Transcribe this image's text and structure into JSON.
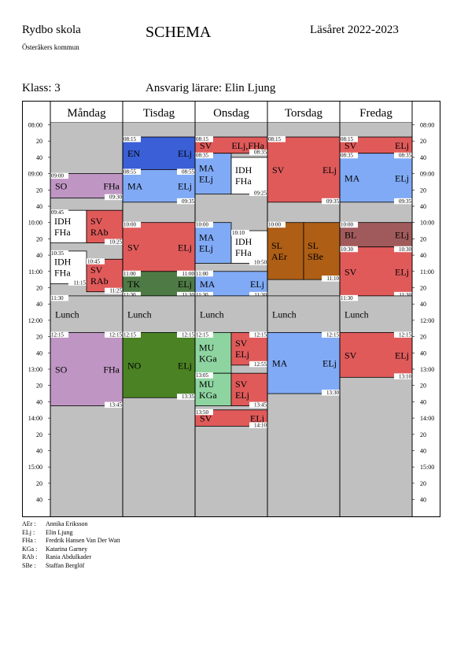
{
  "header": {
    "school": "Rydbo skola",
    "title": "SCHEMA",
    "year": "Läsåret 2022-2023",
    "kommun": "Österåkers kommun",
    "klass": "Klass: 3",
    "teacher": "Ansvarig lärare: Elin Ljung"
  },
  "colors": {
    "background": "#c0c0c0",
    "purple": "#bf96c3",
    "red": "#e05a5a",
    "blue_dark": "#3a5fd6",
    "blue_light": "#80aaf5",
    "green_dark": "#4e7a45",
    "green_mid": "#4a8224",
    "green_light": "#8ed4a0",
    "brown": "#ae5e15",
    "brown_red": "#a15a5b",
    "white": "#ffffff"
  },
  "time_labels": [
    "08:00",
    "20",
    "40",
    "09:00",
    "20",
    "40",
    "10:00",
    "20",
    "40",
    "11:00",
    "20",
    "40",
    "12:00",
    "20",
    "40",
    "13:00",
    "20",
    "40",
    "14:00",
    "20",
    "40",
    "15:00",
    "20",
    "40"
  ],
  "days": [
    {
      "name": "Måndag",
      "blocks": [
        {
          "start": "09:00",
          "end": "09:30",
          "lines": [
            "SO"
          ],
          "right": "FHa",
          "color": "purple",
          "tl": "09:00",
          "br": "09:30"
        },
        {
          "start": "09:45",
          "end": "10:25",
          "lines": [
            "IDH",
            "FHa"
          ],
          "right": "",
          "color": "white",
          "tl": "09:45",
          "br": "",
          "half": "left"
        },
        {
          "start": "09:45",
          "end": "10:25",
          "lines": [
            "SV",
            "RAb"
          ],
          "right": "",
          "color": "red",
          "tl": "",
          "br": "10:25",
          "half": "right"
        },
        {
          "start": "10:35",
          "end": "11:15",
          "lines": [
            "IDH",
            "FHa"
          ],
          "right": "",
          "color": "white",
          "tl": "10:35",
          "br": "11:15",
          "half": "left"
        },
        {
          "start": "10:45",
          "end": "11:25",
          "lines": [
            "SV",
            "RAb"
          ],
          "right": "",
          "color": "red",
          "tl": "10:45",
          "br": "11:25",
          "half": "right"
        },
        {
          "start": "11:30",
          "end": "12:15",
          "lines": [
            "Lunch"
          ],
          "right": "",
          "color": "lunch",
          "tl": "11:30",
          "br": ""
        },
        {
          "start": "12:15",
          "end": "13:45",
          "lines": [
            "SO"
          ],
          "right": "FHa",
          "color": "purple",
          "tl": "12:15",
          "tr": "12:15",
          "br": "13:45"
        }
      ]
    },
    {
      "name": "Tisdag",
      "blocks": [
        {
          "start": "08:15",
          "end": "08:55",
          "lines": [
            "EN"
          ],
          "right": "ELj",
          "color": "blue_dark",
          "tl": "08:15",
          "br": ""
        },
        {
          "start": "08:55",
          "end": "09:35",
          "lines": [
            "MA"
          ],
          "right": "ELj",
          "color": "blue_light",
          "tl": "08:55",
          "tr": "08:55",
          "br": "09:35"
        },
        {
          "start": "10:00",
          "end": "11:00",
          "lines": [
            "SV"
          ],
          "right": "ELj",
          "color": "red",
          "tl": "10:00",
          "br": ""
        },
        {
          "start": "11:00",
          "end": "11:30",
          "lines": [
            "TK"
          ],
          "right": "ELj",
          "color": "green_dark",
          "tl": "11:00",
          "tr": "11:00",
          "bl": "11:30",
          "br": "11:30"
        },
        {
          "start": "11:30",
          "end": "12:15",
          "lines": [
            "Lunch"
          ],
          "right": "",
          "color": "lunch",
          "tl": "",
          "br": ""
        },
        {
          "start": "12:15",
          "end": "13:35",
          "lines": [
            "NO"
          ],
          "right": "ELj",
          "color": "green_mid",
          "tl": "12:15",
          "tr": "12:15",
          "br": "13:35"
        }
      ]
    },
    {
      "name": "Onsdag",
      "blocks": [
        {
          "start": "08:15",
          "end": "08:35",
          "lines": [
            "SV"
          ],
          "right": "ELj,FHa",
          "color": "red",
          "tl": "08:15",
          "br": "08:35"
        },
        {
          "start": "08:35",
          "end": "09:25",
          "lines": [
            "MA",
            "ELj"
          ],
          "right": "",
          "color": "blue_light",
          "tl": "08:35",
          "half": "left"
        },
        {
          "start": "08:40",
          "end": "09:25",
          "lines": [
            "IDH",
            "FHa"
          ],
          "right": "",
          "color": "white",
          "tl": "",
          "br": "09:25",
          "half": "right"
        },
        {
          "start": "10:00",
          "end": "10:50",
          "lines": [
            "MA",
            "ELj"
          ],
          "right": "",
          "color": "blue_light",
          "tl": "10:00",
          "half": "left"
        },
        {
          "start": "10:10",
          "end": "10:50",
          "lines": [
            "IDH",
            "FHa"
          ],
          "right": "",
          "color": "white",
          "tl": "10:10",
          "br": "10:50",
          "half": "right"
        },
        {
          "start": "11:00",
          "end": "11:30",
          "lines": [
            "MA"
          ],
          "right": "ELj",
          "color": "blue_light",
          "tl": "11:00",
          "bl": "11:30",
          "br": "11:30"
        },
        {
          "start": "11:30",
          "end": "12:15",
          "lines": [
            "Lunch"
          ],
          "right": "",
          "color": "lunch"
        },
        {
          "start": "12:15",
          "end": "13:05",
          "lines": [
            "MU",
            "KGa"
          ],
          "right": "",
          "color": "green_light",
          "tl": "12:15",
          "half": "left"
        },
        {
          "start": "12:15",
          "end": "12:55",
          "lines": [
            "SV",
            "ELj"
          ],
          "right": "",
          "color": "red",
          "tr": "12:15",
          "br": "12:55",
          "half": "right"
        },
        {
          "start": "13:05",
          "end": "13:45",
          "lines": [
            "MU",
            "KGa"
          ],
          "right": "",
          "color": "green_light",
          "tl": "13:05",
          "half": "left"
        },
        {
          "start": "13:05",
          "end": "13:45",
          "lines": [
            "SV",
            "ELj"
          ],
          "right": "",
          "color": "red",
          "br": "13:45",
          "half": "right"
        },
        {
          "start": "13:50",
          "end": "14:10",
          "lines": [
            "SV"
          ],
          "right": "ELj",
          "color": "red",
          "tl": "13:50",
          "br": "14:10"
        }
      ]
    },
    {
      "name": "Torsdag",
      "blocks": [
        {
          "start": "08:15",
          "end": "09:35",
          "lines": [
            "SV"
          ],
          "right": "ELj",
          "color": "red",
          "tl": "08:15",
          "br": "09:35"
        },
        {
          "start": "10:00",
          "end": "11:10",
          "lines": [
            "SL",
            "AEr"
          ],
          "right": "",
          "color": "brown",
          "tl": "10:00",
          "half": "left"
        },
        {
          "start": "10:00",
          "end": "11:10",
          "lines": [
            "SL",
            "SBe"
          ],
          "right": "",
          "color": "brown",
          "br": "11:10",
          "half": "right"
        },
        {
          "start": "11:30",
          "end": "12:15",
          "lines": [
            "Lunch"
          ],
          "right": "",
          "color": "lunch"
        },
        {
          "start": "12:15",
          "end": "13:30",
          "lines": [
            "MA"
          ],
          "right": "ELj",
          "color": "blue_light",
          "tr": "12:15",
          "br": "13:30"
        }
      ]
    },
    {
      "name": "Fredag",
      "blocks": [
        {
          "start": "08:15",
          "end": "08:35",
          "lines": [
            "SV"
          ],
          "right": "ELj",
          "color": "red",
          "tl": "08:15"
        },
        {
          "start": "08:35",
          "end": "09:35",
          "lines": [
            "MA"
          ],
          "right": "ELj",
          "color": "blue_light",
          "tl": "08:35",
          "tr": "08:35",
          "br": "09:35"
        },
        {
          "start": "10:00",
          "end": "10:30",
          "lines": [
            "BL"
          ],
          "right": "ELj",
          "color": "brown_red",
          "tl": "10:00"
        },
        {
          "start": "10:30",
          "end": "11:30",
          "lines": [
            "SV"
          ],
          "right": "ELj",
          "color": "red",
          "tl": "10:30",
          "tr": "10:30",
          "br": "11:30"
        },
        {
          "start": "11:30",
          "end": "12:15",
          "lines": [
            "Lunch"
          ],
          "right": "",
          "color": "lunch",
          "tl": "11:30"
        },
        {
          "start": "12:15",
          "end": "13:10",
          "lines": [
            "SV"
          ],
          "right": "ELj",
          "color": "red",
          "tr": "12:15",
          "br": "13:10"
        }
      ]
    }
  ],
  "legend": [
    {
      "abbr": "AEr :",
      "name": "Annika Eriksson"
    },
    {
      "abbr": "ELj :",
      "name": "Elin Ljung"
    },
    {
      "abbr": "FHa :",
      "name": "Fredrik Hansen Van Der Watt"
    },
    {
      "abbr": "KGa :",
      "name": "Katarina Garney"
    },
    {
      "abbr": "RAb :",
      "name": "Rania Abdulkader"
    },
    {
      "abbr": "SBe :",
      "name": "Staffan Berglöf"
    }
  ]
}
